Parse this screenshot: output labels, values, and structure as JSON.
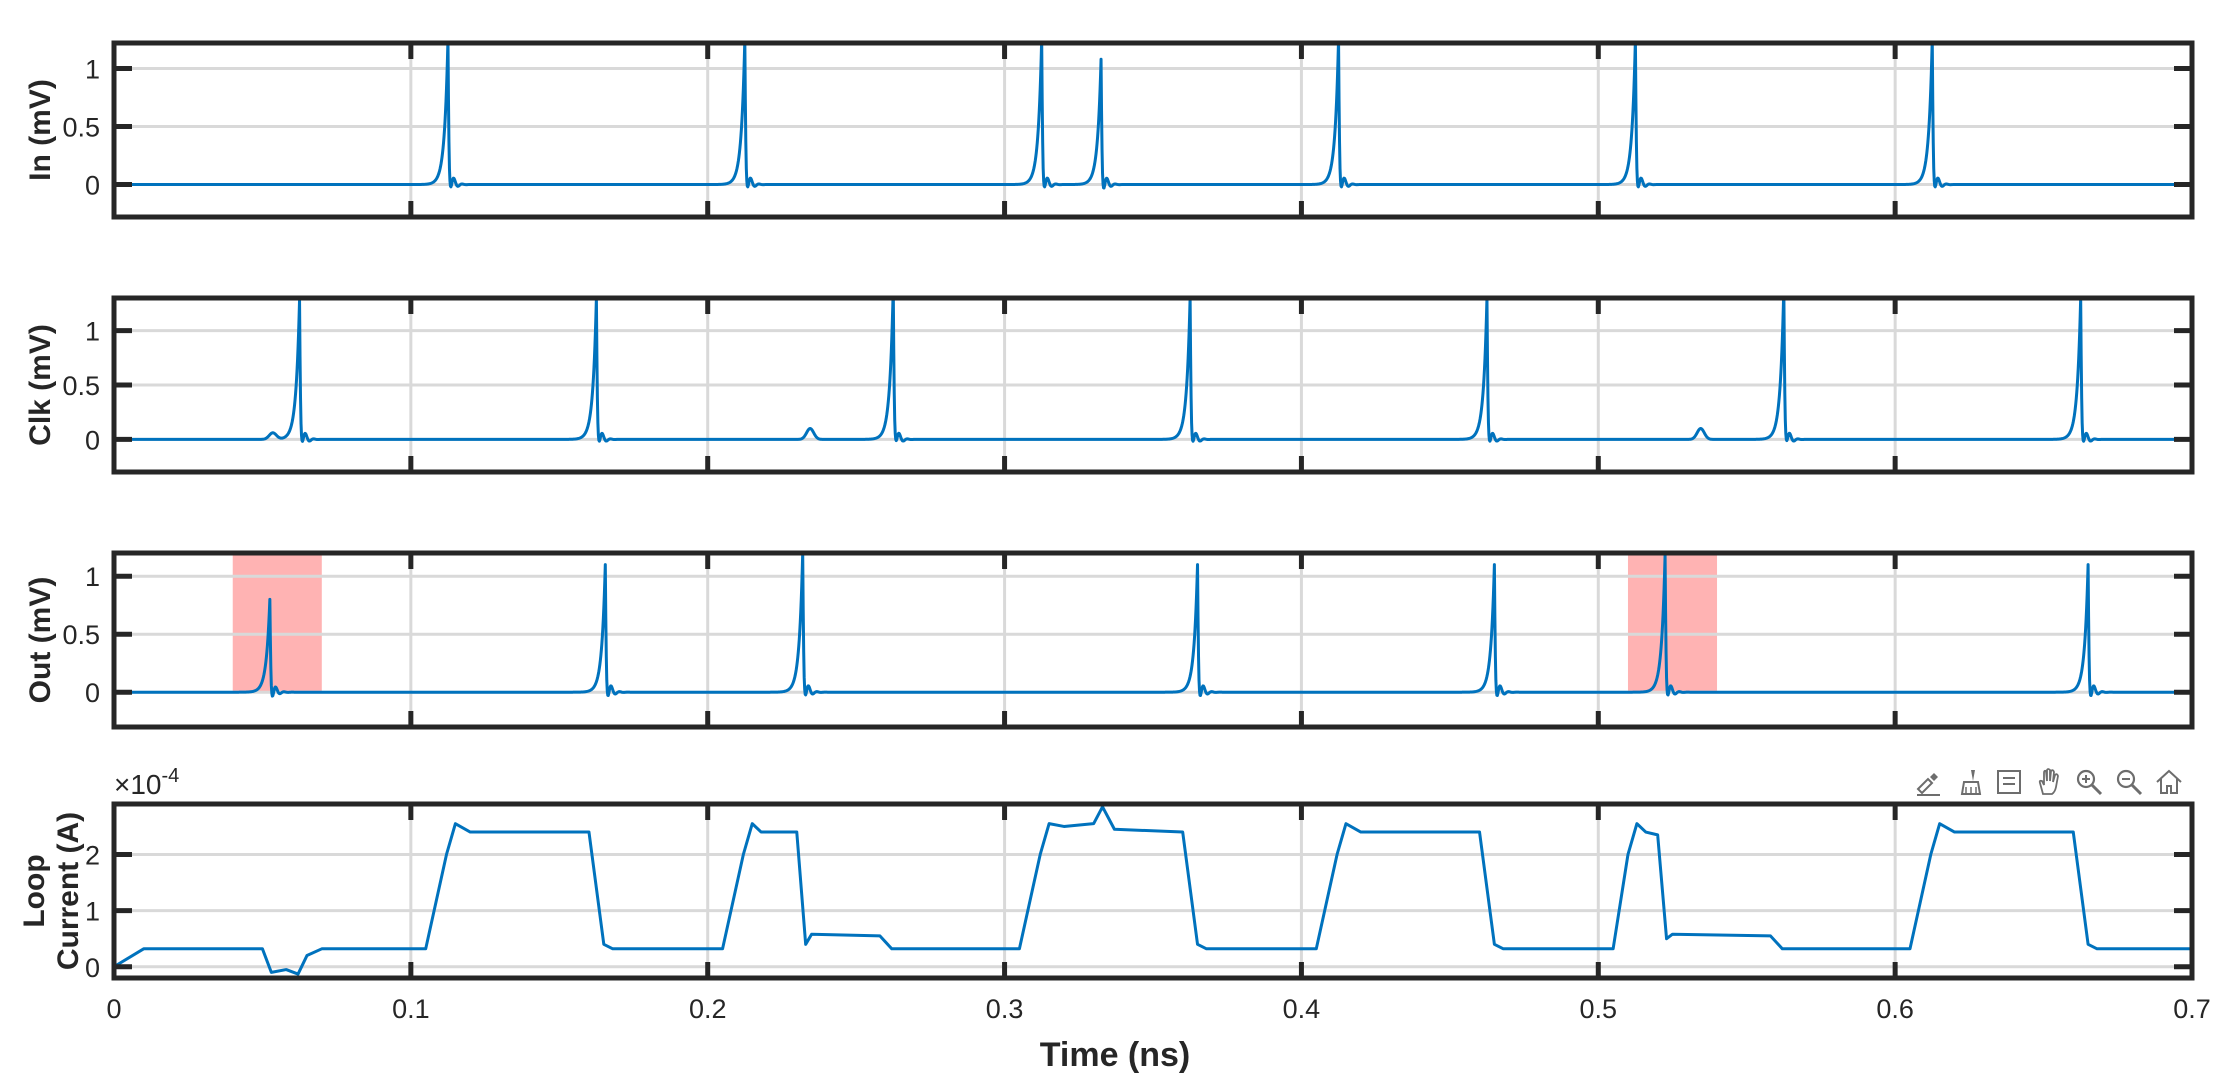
{
  "chart_data": [
    {
      "type": "line",
      "ylabel": "In (mV)",
      "ylim": [
        -0.28,
        1.22
      ],
      "yticks": [
        0,
        0.5,
        1
      ],
      "ytick_labels": [
        "0",
        "0.5",
        "1"
      ],
      "xlim": [
        0,
        0.7
      ],
      "xticks": [
        0,
        0.1,
        0.2,
        0.3,
        0.4,
        0.5,
        0.6,
        0.7
      ],
      "grid": true,
      "series": [
        {
          "color": "#0072BD",
          "pulses": [
            {
              "t": 0.1125,
              "peak": 1.25
            },
            {
              "t": 0.2125,
              "peak": 1.25
            },
            {
              "t": 0.3125,
              "peak": 1.25
            },
            {
              "t": 0.3325,
              "peak": 1.08
            },
            {
              "t": 0.4125,
              "peak": 1.25
            },
            {
              "t": 0.5125,
              "peak": 1.25
            },
            {
              "t": 0.6125,
              "peak": 1.25
            }
          ]
        }
      ]
    },
    {
      "type": "line",
      "ylabel": "Clk (mV)",
      "ylim": [
        -0.3,
        1.3
      ],
      "yticks": [
        0,
        0.5,
        1
      ],
      "ytick_labels": [
        "0",
        "0.5",
        "1"
      ],
      "xlim": [
        0,
        0.7
      ],
      "xticks": [
        0,
        0.1,
        0.2,
        0.3,
        0.4,
        0.5,
        0.6,
        0.7
      ],
      "grid": true,
      "series": [
        {
          "color": "#0072BD",
          "pulses": [
            {
              "t": 0.0625,
              "peak": 1.28
            },
            {
              "t": 0.1625,
              "peak": 1.3
            },
            {
              "t": 0.2625,
              "peak": 1.4
            },
            {
              "t": 0.3625,
              "peak": 1.3
            },
            {
              "t": 0.4625,
              "peak": 1.3
            },
            {
              "t": 0.5625,
              "peak": 1.4
            },
            {
              "t": 0.6625,
              "peak": 1.3
            }
          ],
          "small_bumps": [
            {
              "t": 0.0535,
              "peak": 0.06
            },
            {
              "t": 0.2345,
              "peak": 0.1
            },
            {
              "t": 0.5345,
              "peak": 0.1
            }
          ]
        }
      ]
    },
    {
      "type": "line",
      "ylabel": "Out (mV)",
      "ylim": [
        -0.3,
        1.2
      ],
      "yticks": [
        0,
        0.5,
        1
      ],
      "ytick_labels": [
        "0",
        "0.5",
        "1"
      ],
      "xlim": [
        0,
        0.7
      ],
      "xticks": [
        0,
        0.1,
        0.2,
        0.3,
        0.4,
        0.5,
        0.6,
        0.7
      ],
      "grid": true,
      "highlights": [
        {
          "x0": 0.04,
          "x1": 0.07,
          "y0": 0,
          "y1": 1.2,
          "color": "#FF9999"
        },
        {
          "x0": 0.51,
          "x1": 0.54,
          "y0": 0,
          "y1": 1.2,
          "color": "#FF9999"
        }
      ],
      "series": [
        {
          "color": "#0072BD",
          "pulses": [
            {
              "t": 0.0525,
              "peak": 0.8
            },
            {
              "t": 0.1655,
              "peak": 1.1
            },
            {
              "t": 0.232,
              "peak": 1.2
            },
            {
              "t": 0.365,
              "peak": 1.1
            },
            {
              "t": 0.465,
              "peak": 1.1
            },
            {
              "t": 0.5225,
              "peak": 1.18
            },
            {
              "t": 0.665,
              "peak": 1.1
            }
          ]
        }
      ]
    },
    {
      "type": "line",
      "ylabel": "Loop Current (A)",
      "ylabel_lines": [
        "Loop",
        "Current (A)"
      ],
      "yscale_exponent": "×10⁻⁴",
      "exponent_base": "×10",
      "exponent_power": "-4",
      "ylim": [
        -0.2,
        2.9
      ],
      "yticks": [
        0,
        1,
        2
      ],
      "ytick_labels": [
        "0",
        "1",
        "2"
      ],
      "xlim": [
        0,
        0.7
      ],
      "xticks": [
        0,
        0.1,
        0.2,
        0.3,
        0.4,
        0.5,
        0.6,
        0.7
      ],
      "xtick_labels": [
        "0",
        "0.1",
        "0.2",
        "0.3",
        "0.4",
        "0.5",
        "0.6",
        "0.7"
      ],
      "xlabel": "Time (ns)",
      "grid": true,
      "series": [
        {
          "color": "#0072BD",
          "levels": {
            "low": 0.32,
            "mid": 0.58,
            "high": 2.4
          },
          "points": [
            [
              0,
              0.0
            ],
            [
              0.01,
              0.32
            ],
            [
              0.05,
              0.32
            ],
            [
              0.053,
              -0.1
            ],
            [
              0.058,
              -0.05
            ],
            [
              0.062,
              -0.13
            ],
            [
              0.065,
              0.2
            ],
            [
              0.07,
              0.32
            ],
            [
              0.105,
              0.32
            ],
            [
              0.112,
              2.0
            ],
            [
              0.115,
              2.55
            ],
            [
              0.12,
              2.4
            ],
            [
              0.16,
              2.4
            ],
            [
              0.165,
              0.4
            ],
            [
              0.168,
              0.32
            ],
            [
              0.205,
              0.32
            ],
            [
              0.212,
              2.0
            ],
            [
              0.215,
              2.55
            ],
            [
              0.218,
              2.4
            ],
            [
              0.23,
              2.4
            ],
            [
              0.233,
              0.4
            ],
            [
              0.235,
              0.58
            ],
            [
              0.258,
              0.55
            ],
            [
              0.262,
              0.32
            ],
            [
              0.305,
              0.32
            ],
            [
              0.312,
              2.0
            ],
            [
              0.315,
              2.55
            ],
            [
              0.32,
              2.5
            ],
            [
              0.33,
              2.55
            ],
            [
              0.333,
              2.85
            ],
            [
              0.337,
              2.45
            ],
            [
              0.36,
              2.4
            ],
            [
              0.365,
              0.4
            ],
            [
              0.368,
              0.32
            ],
            [
              0.405,
              0.32
            ],
            [
              0.412,
              2.0
            ],
            [
              0.415,
              2.55
            ],
            [
              0.42,
              2.4
            ],
            [
              0.46,
              2.4
            ],
            [
              0.465,
              0.4
            ],
            [
              0.468,
              0.32
            ],
            [
              0.505,
              0.32
            ],
            [
              0.51,
              2.0
            ],
            [
              0.513,
              2.55
            ],
            [
              0.516,
              2.4
            ],
            [
              0.52,
              2.35
            ],
            [
              0.523,
              0.5
            ],
            [
              0.525,
              0.58
            ],
            [
              0.558,
              0.55
            ],
            [
              0.562,
              0.32
            ],
            [
              0.605,
              0.32
            ],
            [
              0.612,
              2.0
            ],
            [
              0.615,
              2.55
            ],
            [
              0.62,
              2.4
            ],
            [
              0.66,
              2.4
            ],
            [
              0.665,
              0.4
            ],
            [
              0.668,
              0.32
            ],
            [
              0.7,
              0.32
            ]
          ]
        }
      ]
    }
  ],
  "toolbar": {
    "buttons": [
      {
        "name": "edit-annotations-icon"
      },
      {
        "name": "brush-icon"
      },
      {
        "name": "data-tips-icon"
      },
      {
        "name": "pan-hand-icon"
      },
      {
        "name": "zoom-in-icon"
      },
      {
        "name": "zoom-out-icon"
      },
      {
        "name": "restore-home-icon"
      }
    ]
  }
}
